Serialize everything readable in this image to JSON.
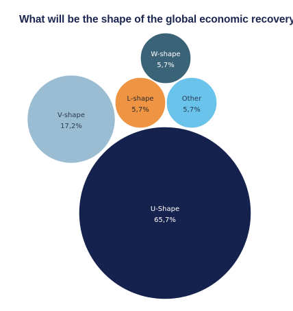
{
  "chart_data": {
    "type": "bubble",
    "title": "What will be the shape of the global economic recovery?",
    "series": [
      {
        "name": "U-Shape",
        "value": 65.7,
        "value_label": "65,7%",
        "color": "#15224d",
        "text_color": "#ffffff"
      },
      {
        "name": "V-shape",
        "value": 17.2,
        "value_label": "17,2%",
        "color": "#9bbdd3",
        "text_color": "#2a3a55"
      },
      {
        "name": "W-shape",
        "value": 5.7,
        "value_label": "5,7%",
        "color": "#3b6378",
        "text_color": "#ffffff"
      },
      {
        "name": "L-shape",
        "value": 5.7,
        "value_label": "5,7%",
        "color": "#ef9443",
        "text_color": "#2a2a2a"
      },
      {
        "name": "Other",
        "value": 5.7,
        "value_label": "5,7%",
        "color": "#69c3ea",
        "text_color": "#2a3a55"
      }
    ]
  }
}
